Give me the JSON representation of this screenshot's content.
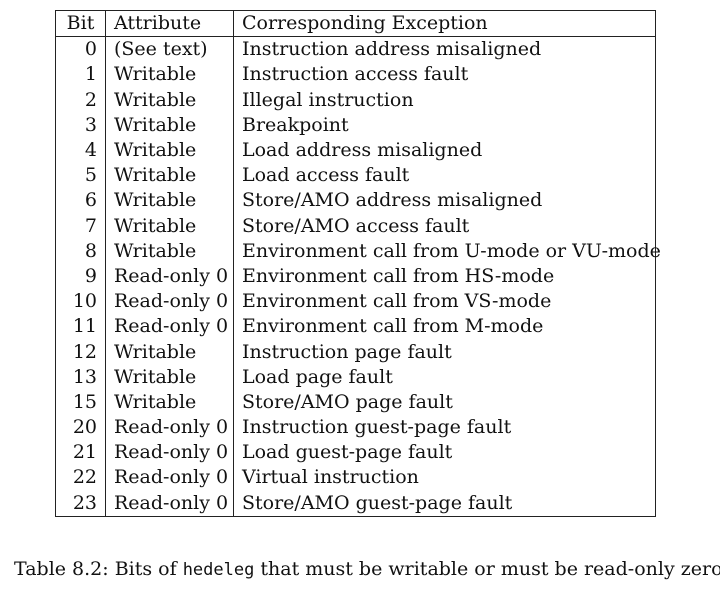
{
  "table": {
    "headers": {
      "bit": "Bit",
      "attribute": "Attribute",
      "exception": "Corresponding Exception"
    },
    "rows": [
      {
        "bit": "0",
        "attribute": "(See text)",
        "exception": "Instruction address misaligned"
      },
      {
        "bit": "1",
        "attribute": "Writable",
        "exception": "Instruction access fault"
      },
      {
        "bit": "2",
        "attribute": "Writable",
        "exception": "Illegal instruction"
      },
      {
        "bit": "3",
        "attribute": "Writable",
        "exception": "Breakpoint"
      },
      {
        "bit": "4",
        "attribute": "Writable",
        "exception": "Load address misaligned"
      },
      {
        "bit": "5",
        "attribute": "Writable",
        "exception": "Load access fault"
      },
      {
        "bit": "6",
        "attribute": "Writable",
        "exception": "Store/AMO address misaligned"
      },
      {
        "bit": "7",
        "attribute": "Writable",
        "exception": "Store/AMO access fault"
      },
      {
        "bit": "8",
        "attribute": "Writable",
        "exception": "Environment call from U-mode or VU-mode"
      },
      {
        "bit": "9",
        "attribute": "Read-only 0",
        "exception": "Environment call from HS-mode"
      },
      {
        "bit": "10",
        "attribute": "Read-only 0",
        "exception": "Environment call from VS-mode"
      },
      {
        "bit": "11",
        "attribute": "Read-only 0",
        "exception": "Environment call from M-mode"
      },
      {
        "bit": "12",
        "attribute": "Writable",
        "exception": "Instruction page fault"
      },
      {
        "bit": "13",
        "attribute": "Writable",
        "exception": "Load page fault"
      },
      {
        "bit": "15",
        "attribute": "Writable",
        "exception": "Store/AMO page fault"
      },
      {
        "bit": "20",
        "attribute": "Read-only 0",
        "exception": "Instruction guest-page fault"
      },
      {
        "bit": "21",
        "attribute": "Read-only 0",
        "exception": "Load guest-page fault"
      },
      {
        "bit": "22",
        "attribute": "Read-only 0",
        "exception": "Virtual instruction"
      },
      {
        "bit": "23",
        "attribute": "Read-only 0",
        "exception": "Store/AMO guest-page fault"
      }
    ]
  },
  "caption": {
    "prefix": "Table 8.2: Bits of ",
    "register": "hedeleg",
    "suffix": " that must be writable or must be read-only zero."
  }
}
